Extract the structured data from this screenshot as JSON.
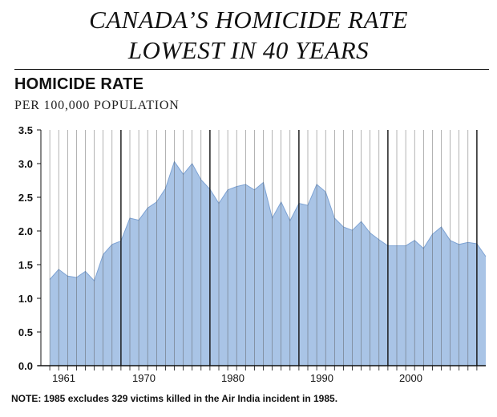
{
  "headline": {
    "line1": "CANADA’S HOMICIDE RATE",
    "line2": "LOWEST IN 40 YEARS"
  },
  "note": "NOTE: 1985 excludes 329 victims killed in the Air India incident in 1985.",
  "colors": {
    "area_fill": "#a9c4e6",
    "area_line": "#7ea3d4",
    "axis": "#111111",
    "year_grid": "#555555",
    "decade_grid": "#111111"
  },
  "chart_data": {
    "type": "area",
    "title": "HOMICIDE RATE",
    "subtitle": "PER 100,000 POPULATION",
    "xlabel": "",
    "ylabel": "",
    "x": [
      1961,
      1962,
      1963,
      1964,
      1965,
      1966,
      1967,
      1968,
      1969,
      1970,
      1971,
      1972,
      1973,
      1974,
      1975,
      1976,
      1977,
      1978,
      1979,
      1980,
      1981,
      1982,
      1983,
      1984,
      1985,
      1986,
      1987,
      1988,
      1989,
      1990,
      1991,
      1992,
      1993,
      1994,
      1995,
      1996,
      1997,
      1998,
      1999,
      2000,
      2001,
      2002,
      2003,
      2004,
      2005,
      2006,
      2007,
      2008,
      2009
    ],
    "series": [
      {
        "values": [
          1.28,
          1.43,
          1.33,
          1.31,
          1.4,
          1.26,
          1.65,
          1.8,
          1.85,
          2.19,
          2.16,
          2.34,
          2.43,
          2.63,
          3.03,
          2.84,
          3.0,
          2.76,
          2.62,
          2.41,
          2.61,
          2.66,
          2.69,
          2.61,
          2.72,
          2.19,
          2.43,
          2.15,
          2.41,
          2.38,
          2.69,
          2.58,
          2.19,
          2.06,
          2.01,
          2.14,
          1.97,
          1.87,
          1.78,
          1.78,
          1.78,
          1.86,
          1.74,
          1.95,
          2.06,
          1.86,
          1.8,
          1.83,
          1.81
        ]
      }
    ],
    "extra_point": {
      "x": 2010,
      "y": 1.62
    },
    "xlim": [
      1960,
      2010
    ],
    "ylim": [
      0,
      3.5
    ],
    "yticks": [
      0.0,
      0.5,
      1.0,
      1.5,
      2.0,
      2.5,
      3.0,
      3.5
    ],
    "ytick_labels": [
      "0.0",
      "0.5",
      "1.0",
      "1.5",
      "2.0",
      "2.5",
      "3.0",
      "3.5"
    ],
    "xticks": [
      1961,
      1970,
      1980,
      1990,
      2000
    ],
    "xtick_labels": [
      "1961",
      "1970",
      "1980",
      "1990",
      "2000"
    ],
    "decade_lines": [
      1969,
      1979,
      1989,
      1999,
      2009
    ],
    "grid": "vertical lines at every year",
    "legend": "none"
  }
}
